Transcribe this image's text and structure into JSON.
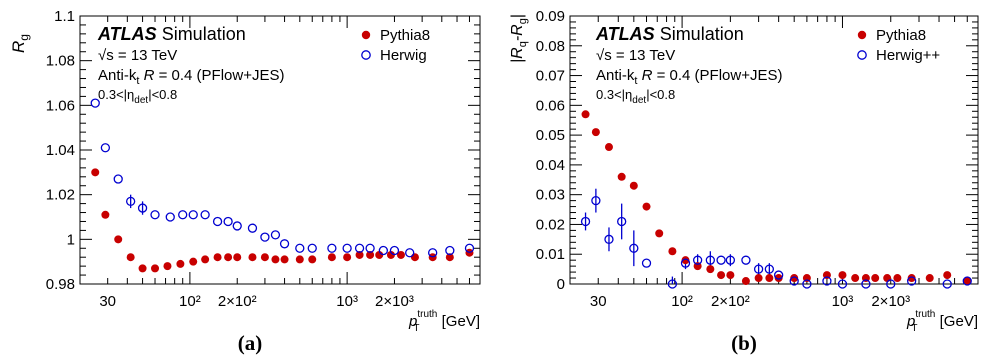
{
  "chart_data": [
    {
      "type": "scatter",
      "panel": "(a)",
      "xscale": "log",
      "xlim": [
        20,
        7000
      ],
      "ylim": [
        0.98,
        1.1
      ],
      "xlabel": "p_T^truth [GeV]",
      "xlabel_main": "p",
      "xlabel_sub": "T",
      "xlabel_sup": "truth",
      "xlabel_unit": "[GeV]",
      "ylabel": "R_g",
      "ylabel_main": "R",
      "ylabel_sub": "g",
      "yticks": [
        "0.98",
        "1",
        "1.02",
        "1.04",
        "1.06",
        "1.08",
        "1.1"
      ],
      "ytick_values": [
        0.98,
        1.0,
        1.02,
        1.04,
        1.06,
        1.08,
        1.1
      ],
      "xticks": [
        "30",
        "10²",
        "2×10²",
        "10³",
        "2×10³"
      ],
      "xtick_values": [
        30,
        100,
        200,
        1000,
        2000
      ],
      "annotations": {
        "atlas": "ATLAS",
        "simulation": "Simulation",
        "energy": "√s = 13 TeV",
        "algo_prefix": "Anti-k",
        "algo_sub": "t",
        "algo_R": "R",
        "algo_suffix": " = 0.4 (PFlow+JES)",
        "eta_prefix": "0.3<|η",
        "eta_sub": "det",
        "eta_suffix": "|<0.8"
      },
      "legend": "top-right",
      "series": [
        {
          "name": "Pythia8",
          "marker": "filled-circle",
          "color": "#c80000",
          "points": [
            [
              25,
              1.03
            ],
            [
              29,
              1.011
            ],
            [
              35,
              1.0
            ],
            [
              42,
              0.992
            ],
            [
              50,
              0.987
            ],
            [
              60,
              0.987
            ],
            [
              72,
              0.988
            ],
            [
              87,
              0.989
            ],
            [
              105,
              0.99
            ],
            [
              125,
              0.991
            ],
            [
              150,
              0.992
            ],
            [
              175,
              0.992
            ],
            [
              200,
              0.992
            ],
            [
              250,
              0.992
            ],
            [
              300,
              0.992
            ],
            [
              350,
              0.991
            ],
            [
              400,
              0.991
            ],
            [
              500,
              0.991
            ],
            [
              600,
              0.991
            ],
            [
              800,
              0.992
            ],
            [
              1000,
              0.992
            ],
            [
              1200,
              0.993
            ],
            [
              1400,
              0.993
            ],
            [
              1600,
              0.993
            ],
            [
              1900,
              0.993
            ],
            [
              2200,
              0.993
            ],
            [
              2700,
              0.992
            ],
            [
              3500,
              0.992
            ],
            [
              4500,
              0.992
            ],
            [
              6000,
              0.994
            ]
          ]
        },
        {
          "name": "Herwig",
          "marker": "open-circle",
          "color": "#0000d0",
          "points": [
            [
              25,
              1.061
            ],
            [
              29,
              1.041
            ],
            [
              35,
              1.027
            ],
            [
              42,
              1.017
            ],
            [
              50,
              1.014
            ],
            [
              60,
              1.011
            ],
            [
              75,
              1.01
            ],
            [
              90,
              1.011
            ],
            [
              105,
              1.011
            ],
            [
              125,
              1.011
            ],
            [
              150,
              1.008
            ],
            [
              175,
              1.008
            ],
            [
              200,
              1.006
            ],
            [
              250,
              1.005
            ],
            [
              300,
              1.001
            ],
            [
              350,
              1.002
            ],
            [
              400,
              0.998
            ],
            [
              500,
              0.996
            ],
            [
              600,
              0.996
            ],
            [
              800,
              0.996
            ],
            [
              1000,
              0.996
            ],
            [
              1200,
              0.996
            ],
            [
              1400,
              0.996
            ],
            [
              1700,
              0.995
            ],
            [
              2000,
              0.995
            ],
            [
              2500,
              0.994
            ],
            [
              3500,
              0.994
            ],
            [
              4500,
              0.995
            ],
            [
              6000,
              0.996
            ]
          ],
          "errors": [
            [
              42,
              0.003
            ],
            [
              50,
              0.003
            ]
          ]
        }
      ]
    },
    {
      "type": "scatter",
      "panel": "(b)",
      "xscale": "log",
      "xlim": [
        20,
        7000
      ],
      "ylim": [
        0,
        0.09
      ],
      "xlabel": "p_T^truth [GeV]",
      "xlabel_main": "p",
      "xlabel_sub": "T",
      "xlabel_sup": "truth",
      "xlabel_unit": "[GeV]",
      "ylabel": "|R_q-R_g|",
      "ylabel_parts": [
        "|R",
        "q",
        "-R",
        "g",
        "|"
      ],
      "yticks": [
        "0",
        "0.01",
        "0.02",
        "0.03",
        "0.04",
        "0.05",
        "0.06",
        "0.07",
        "0.08",
        "0.09"
      ],
      "ytick_values": [
        0,
        0.01,
        0.02,
        0.03,
        0.04,
        0.05,
        0.06,
        0.07,
        0.08,
        0.09
      ],
      "xticks": [
        "30",
        "10²",
        "2×10²",
        "10³",
        "2×10³"
      ],
      "xtick_values": [
        30,
        100,
        200,
        1000,
        2000
      ],
      "annotations": {
        "atlas": "ATLAS",
        "simulation": "Simulation",
        "energy": "√s = 13 TeV",
        "algo_prefix": "Anti-k",
        "algo_sub": "t",
        "algo_R": "R",
        "algo_suffix": " = 0.4 (PFlow+JES)",
        "eta_prefix": "0.3<|η",
        "eta_sub": "det",
        "eta_suffix": "|<0.8"
      },
      "legend": "top-right",
      "series": [
        {
          "name": "Pythia8",
          "marker": "filled-circle",
          "color": "#c80000",
          "points": [
            [
              25,
              0.057
            ],
            [
              29,
              0.051
            ],
            [
              35,
              0.046
            ],
            [
              42,
              0.036
            ],
            [
              50,
              0.033
            ],
            [
              60,
              0.026
            ],
            [
              72,
              0.017
            ],
            [
              87,
              0.011
            ],
            [
              105,
              0.008
            ],
            [
              125,
              0.006
            ],
            [
              150,
              0.005
            ],
            [
              175,
              0.003
            ],
            [
              200,
              0.003
            ],
            [
              250,
              0.001
            ],
            [
              300,
              0.002
            ],
            [
              350,
              0.002
            ],
            [
              400,
              0.002
            ],
            [
              500,
              0.002
            ],
            [
              600,
              0.002
            ],
            [
              800,
              0.003
            ],
            [
              1000,
              0.003
            ],
            [
              1200,
              0.002
            ],
            [
              1400,
              0.002
            ],
            [
              1600,
              0.002
            ],
            [
              1900,
              0.002
            ],
            [
              2200,
              0.002
            ],
            [
              2700,
              0.002
            ],
            [
              3500,
              0.002
            ],
            [
              4500,
              0.003
            ],
            [
              6000,
              0.001
            ]
          ]
        },
        {
          "name": "Herwig++",
          "marker": "open-circle",
          "color": "#0000d0",
          "points": [
            [
              25,
              0.021
            ],
            [
              29,
              0.028
            ],
            [
              35,
              0.015
            ],
            [
              42,
              0.021
            ],
            [
              50,
              0.012
            ],
            [
              60,
              0.007
            ],
            [
              87,
              0.0
            ],
            [
              105,
              0.007
            ],
            [
              125,
              0.008
            ],
            [
              150,
              0.008
            ],
            [
              175,
              0.008
            ],
            [
              200,
              0.008
            ],
            [
              250,
              0.008
            ],
            [
              300,
              0.005
            ],
            [
              350,
              0.005
            ],
            [
              400,
              0.003
            ],
            [
              500,
              0.001
            ],
            [
              600,
              0.0
            ],
            [
              800,
              0.001
            ],
            [
              1000,
              0.0
            ],
            [
              1400,
              0.0
            ],
            [
              2000,
              0.0
            ],
            [
              2700,
              0.001
            ],
            [
              4500,
              0.0
            ],
            [
              6000,
              0.001
            ]
          ],
          "errors": [
            [
              25,
              0.003
            ],
            [
              29,
              0.004
            ],
            [
              35,
              0.004
            ],
            [
              42,
              0.006
            ],
            [
              50,
              0.006
            ],
            [
              87,
              0.0025
            ],
            [
              105,
              0.002
            ],
            [
              125,
              0.002
            ],
            [
              150,
              0.003
            ],
            [
              200,
              0.002
            ],
            [
              300,
              0.002
            ],
            [
              350,
              0.002
            ]
          ]
        }
      ]
    }
  ]
}
